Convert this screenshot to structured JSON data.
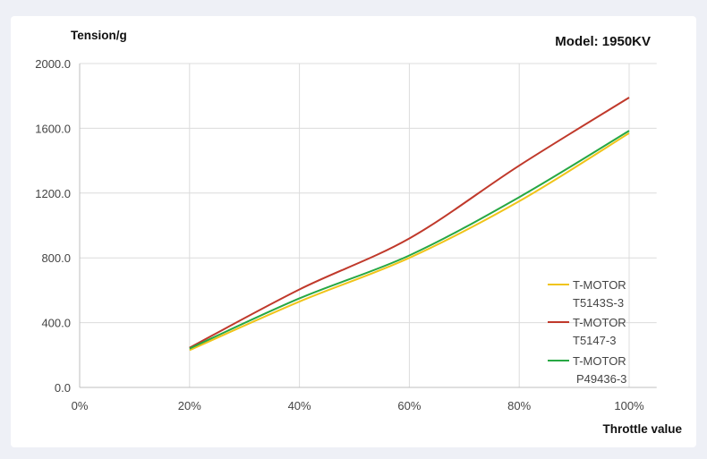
{
  "chart_data": {
    "type": "line",
    "title": "Model: 1950KV",
    "ylabel": "Tension/g",
    "xlabel": "Throttle value",
    "x": [
      20,
      40,
      60,
      80,
      100
    ],
    "xticks": [
      "0%",
      "20%",
      "40%",
      "60%",
      "80%",
      "100%"
    ],
    "xlim": [
      0,
      105
    ],
    "yticks": [
      "0.0",
      "400.0",
      "800.0",
      "1200.0",
      "1600.0",
      "2000.0"
    ],
    "ylim": [
      0,
      2000
    ],
    "grid": true,
    "legend_position": "bottom-right",
    "series": [
      {
        "name_lines": [
          "T-MOTOR",
          "T5143S-3"
        ],
        "color": "#f0c419",
        "values": [
          230,
          530,
          800,
          1150,
          1570
        ]
      },
      {
        "name_lines": [
          "T-MOTOR",
          "T5147-3"
        ],
        "color": "#c0392b",
        "values": [
          245,
          605,
          920,
          1370,
          1790
        ]
      },
      {
        "name_lines": [
          "T-MOTOR",
          "P49436-3"
        ],
        "color": "#27a844",
        "values": [
          240,
          550,
          815,
          1175,
          1585
        ]
      }
    ]
  }
}
